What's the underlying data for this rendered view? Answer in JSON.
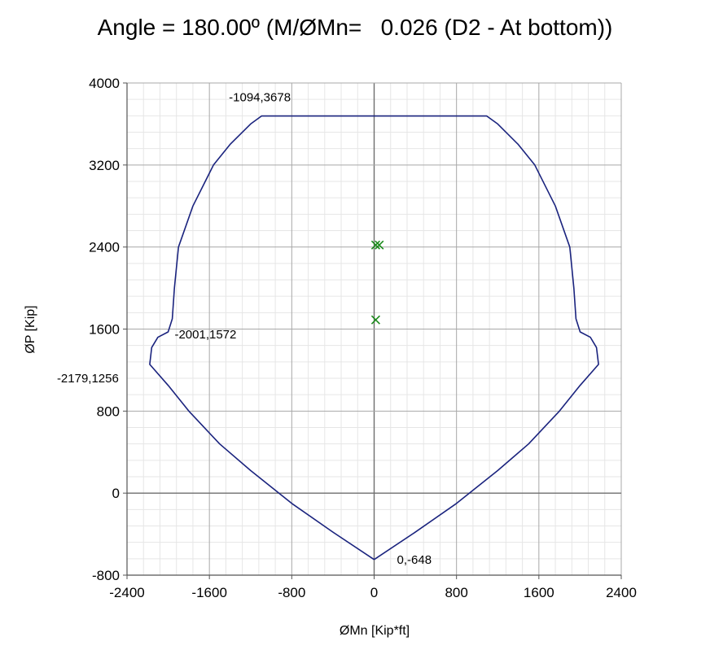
{
  "chart_data": {
    "type": "line",
    "title": "Angle = 180.00º (M/ØMn=   0.026 (D2 - At bottom))",
    "xlabel": "ØMn [Kip*ft]",
    "ylabel": "ØP [Kip]",
    "xlim": [
      -2400,
      2400
    ],
    "ylim": [
      -800,
      4000
    ],
    "x_ticks": [
      -2400,
      -1600,
      -800,
      0,
      800,
      1600,
      2400
    ],
    "y_ticks": [
      -800,
      0,
      800,
      1600,
      2400,
      3200,
      4000
    ],
    "x_tick_labels": [
      "-2400",
      "-1600",
      "-800",
      "0",
      "800",
      "1600",
      "2400"
    ],
    "y_tick_labels": [
      "-800",
      "0",
      "800",
      "1600",
      "2400",
      "3200",
      "4000"
    ],
    "minor_divisions": 5,
    "grid": true,
    "series": [
      {
        "color": "#1a237e",
        "points": [
          [
            0,
            -648
          ],
          [
            400,
            -380
          ],
          [
            800,
            -100
          ],
          [
            1200,
            220
          ],
          [
            1500,
            480
          ],
          [
            1800,
            800
          ],
          [
            2000,
            1050
          ],
          [
            2179,
            1256
          ],
          [
            2160,
            1420
          ],
          [
            2100,
            1520
          ],
          [
            2001,
            1572
          ],
          [
            1960,
            1700
          ],
          [
            1940,
            2000
          ],
          [
            1900,
            2400
          ],
          [
            1760,
            2800
          ],
          [
            1560,
            3200
          ],
          [
            1400,
            3400
          ],
          [
            1200,
            3600
          ],
          [
            1094,
            3678
          ],
          [
            -1094,
            3678
          ],
          [
            -1200,
            3600
          ],
          [
            -1400,
            3400
          ],
          [
            -1560,
            3200
          ],
          [
            -1760,
            2800
          ],
          [
            -1900,
            2400
          ],
          [
            -1940,
            2000
          ],
          [
            -1960,
            1700
          ],
          [
            -2001,
            1572
          ],
          [
            -2100,
            1520
          ],
          [
            -2160,
            1420
          ],
          [
            -2179,
            1256
          ],
          [
            -2000,
            1050
          ],
          [
            -1800,
            800
          ],
          [
            -1500,
            480
          ],
          [
            -1200,
            220
          ],
          [
            -800,
            -100
          ],
          [
            -400,
            -380
          ],
          [
            0,
            -648
          ]
        ]
      }
    ],
    "markers": {
      "color": "#1a8a1a",
      "symbol": "x",
      "points": [
        [
          15,
          2420
        ],
        [
          50,
          2420
        ],
        [
          15,
          1690
        ]
      ]
    },
    "annotations": [
      {
        "x": -1094,
        "y": 3678,
        "text": "-1094,3678"
      },
      {
        "x": -2001,
        "y": 1572,
        "text": "-2001,1572"
      },
      {
        "x": -2179,
        "y": 1256,
        "text": "-2179,1256"
      },
      {
        "x": 0,
        "y": -648,
        "text": "0,-648"
      }
    ]
  }
}
